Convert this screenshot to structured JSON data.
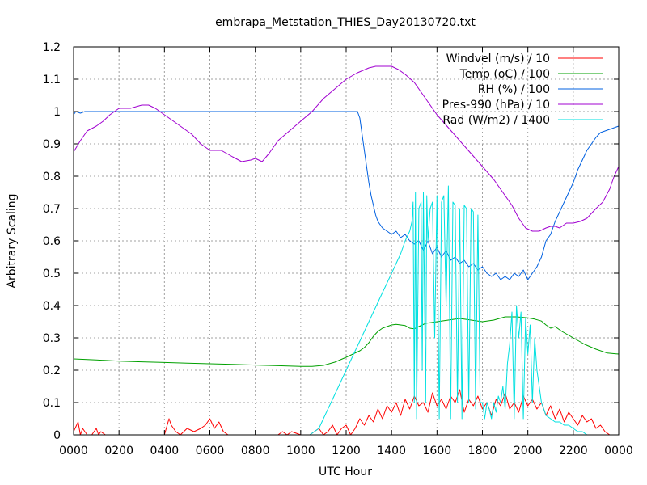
{
  "chart_data": {
    "type": "line",
    "title": "embrapa_Metstation_THIES_Day20130720.txt",
    "xlabel": "UTC Hour",
    "ylabel": "Arbitrary Scaling",
    "xlim": [
      0,
      24
    ],
    "ylim": [
      0,
      1.2
    ],
    "x_ticks": [
      {
        "value": 0,
        "label": "0000"
      },
      {
        "value": 2,
        "label": "0200"
      },
      {
        "value": 4,
        "label": "0400"
      },
      {
        "value": 6,
        "label": "0600"
      },
      {
        "value": 8,
        "label": "0800"
      },
      {
        "value": 10,
        "label": "1000"
      },
      {
        "value": 12,
        "label": "1200"
      },
      {
        "value": 14,
        "label": "1400"
      },
      {
        "value": 16,
        "label": "1600"
      },
      {
        "value": 18,
        "label": "1800"
      },
      {
        "value": 20,
        "label": "2000"
      },
      {
        "value": 22,
        "label": "2200"
      },
      {
        "value": 24,
        "label": "0000"
      }
    ],
    "y_ticks": [
      {
        "value": 0,
        "label": "0"
      },
      {
        "value": 0.1,
        "label": "0.1"
      },
      {
        "value": 0.2,
        "label": "0.2"
      },
      {
        "value": 0.3,
        "label": "0.3"
      },
      {
        "value": 0.4,
        "label": "0.4"
      },
      {
        "value": 0.5,
        "label": "0.5"
      },
      {
        "value": 0.6,
        "label": "0.6"
      },
      {
        "value": 0.7,
        "label": "0.7"
      },
      {
        "value": 0.8,
        "label": "0.8"
      },
      {
        "value": 0.9,
        "label": "0.9"
      },
      {
        "value": 1.0,
        "label": "1"
      },
      {
        "value": 1.1,
        "label": "1.1"
      },
      {
        "value": 1.2,
        "label": "1.2"
      }
    ],
    "grid": true,
    "legend_position": "top-right",
    "series": [
      {
        "name": "Windvel (m/s) / 10",
        "color": "#ff0000",
        "x": [
          0,
          0.2,
          0.3,
          0.4,
          0.6,
          0.8,
          1.0,
          1.1,
          1.2,
          1.4,
          2.0,
          3.0,
          4.0,
          4.2,
          4.3,
          4.5,
          4.7,
          5.0,
          5.3,
          5.6,
          5.8,
          6.0,
          6.2,
          6.4,
          6.6,
          6.8,
          7.0,
          8.0,
          8.8,
          9.0,
          9.2,
          9.4,
          9.6,
          10.0,
          10.4,
          10.6,
          10.8,
          11.0,
          11.2,
          11.4,
          11.6,
          11.8,
          12.0,
          12.2,
          12.4,
          12.6,
          12.8,
          13.0,
          13.2,
          13.4,
          13.6,
          13.8,
          14.0,
          14.2,
          14.4,
          14.6,
          14.8,
          15.0,
          15.2,
          15.4,
          15.6,
          15.8,
          16.0,
          16.2,
          16.4,
          16.6,
          16.8,
          17.0,
          17.2,
          17.4,
          17.6,
          17.8,
          18.0,
          18.2,
          18.4,
          18.6,
          18.8,
          19.0,
          19.2,
          19.4,
          19.6,
          19.8,
          20.0,
          20.2,
          20.4,
          20.6,
          20.8,
          21.0,
          21.2,
          21.4,
          21.6,
          21.8,
          22.0,
          22.2,
          22.4,
          22.6,
          22.8,
          23.0,
          23.2,
          23.4,
          23.6,
          23.8,
          24.0
        ],
        "values": [
          0.01,
          0.04,
          0.0,
          0.02,
          0.0,
          0.0,
          0.02,
          0.0,
          0.01,
          0.0,
          0.0,
          0.0,
          0.0,
          0.05,
          0.03,
          0.01,
          0.0,
          0.02,
          0.01,
          0.02,
          0.03,
          0.05,
          0.02,
          0.04,
          0.01,
          0.0,
          0.0,
          0.0,
          0.0,
          0.0,
          0.01,
          0.0,
          0.01,
          0.0,
          0.0,
          0.01,
          0.02,
          0.0,
          0.01,
          0.03,
          0.0,
          0.02,
          0.03,
          0.0,
          0.02,
          0.05,
          0.03,
          0.06,
          0.04,
          0.08,
          0.05,
          0.09,
          0.07,
          0.1,
          0.06,
          0.11,
          0.08,
          0.12,
          0.09,
          0.1,
          0.07,
          0.13,
          0.09,
          0.11,
          0.08,
          0.12,
          0.1,
          0.14,
          0.07,
          0.11,
          0.09,
          0.12,
          0.08,
          0.1,
          0.06,
          0.11,
          0.09,
          0.13,
          0.08,
          0.1,
          0.07,
          0.12,
          0.09,
          0.11,
          0.08,
          0.1,
          0.06,
          0.09,
          0.05,
          0.08,
          0.04,
          0.07,
          0.05,
          0.03,
          0.06,
          0.04,
          0.05,
          0.02,
          0.03,
          0.01,
          0.0,
          0.0,
          0.0
        ]
      },
      {
        "name": "Temp (oC) / 100",
        "color": "#00a000",
        "x": [
          0,
          1,
          2,
          3,
          4,
          5,
          6,
          7,
          8,
          9,
          10,
          10.5,
          11,
          11.5,
          12,
          12.3,
          12.6,
          12.8,
          13.0,
          13.2,
          13.4,
          13.6,
          13.8,
          14.0,
          14.2,
          14.4,
          14.6,
          14.8,
          15.0,
          15.2,
          15.5,
          16.0,
          16.5,
          17.0,
          17.5,
          18.0,
          18.5,
          19.0,
          19.5,
          20.0,
          20.3,
          20.6,
          20.8,
          21.0,
          21.2,
          21.5,
          22.0,
          22.5,
          23.0,
          23.5,
          24.0
        ],
        "values": [
          0.235,
          0.232,
          0.228,
          0.226,
          0.224,
          0.222,
          0.22,
          0.218,
          0.216,
          0.214,
          0.212,
          0.212,
          0.215,
          0.225,
          0.24,
          0.25,
          0.26,
          0.27,
          0.285,
          0.305,
          0.32,
          0.33,
          0.335,
          0.34,
          0.342,
          0.34,
          0.338,
          0.33,
          0.328,
          0.335,
          0.345,
          0.35,
          0.355,
          0.36,
          0.355,
          0.35,
          0.355,
          0.365,
          0.365,
          0.362,
          0.358,
          0.352,
          0.34,
          0.33,
          0.335,
          0.32,
          0.3,
          0.28,
          0.265,
          0.253,
          0.25
        ]
      },
      {
        "name": "RH (%) / 100",
        "color": "#0060e0",
        "x": [
          0,
          0.1,
          0.3,
          0.5,
          1,
          2,
          4,
          6,
          8,
          10,
          12,
          12.3,
          12.5,
          12.6,
          12.7,
          12.8,
          12.9,
          13.0,
          13.1,
          13.2,
          13.3,
          13.4,
          13.5,
          13.6,
          13.8,
          14.0,
          14.2,
          14.4,
          14.6,
          14.8,
          15.0,
          15.2,
          15.4,
          15.6,
          15.8,
          16.0,
          16.2,
          16.4,
          16.6,
          16.8,
          17.0,
          17.2,
          17.4,
          17.6,
          17.8,
          18.0,
          18.2,
          18.4,
          18.6,
          18.8,
          19.0,
          19.2,
          19.4,
          19.6,
          19.8,
          20.0,
          20.2,
          20.4,
          20.6,
          20.8,
          21.0,
          21.2,
          21.4,
          21.6,
          21.8,
          22.0,
          22.2,
          22.4,
          22.6,
          22.8,
          23.0,
          23.2,
          23.4,
          23.6,
          23.8,
          24.0
        ],
        "values": [
          0.99,
          1.0,
          0.995,
          1.0,
          1.0,
          1.0,
          1.0,
          1.0,
          1.0,
          1.0,
          1.0,
          1.0,
          1.0,
          0.98,
          0.93,
          0.88,
          0.83,
          0.78,
          0.74,
          0.71,
          0.68,
          0.66,
          0.65,
          0.64,
          0.63,
          0.62,
          0.63,
          0.61,
          0.62,
          0.6,
          0.59,
          0.6,
          0.57,
          0.6,
          0.56,
          0.58,
          0.55,
          0.57,
          0.54,
          0.55,
          0.53,
          0.54,
          0.52,
          0.53,
          0.51,
          0.52,
          0.5,
          0.49,
          0.5,
          0.48,
          0.49,
          0.48,
          0.5,
          0.49,
          0.51,
          0.48,
          0.5,
          0.52,
          0.55,
          0.6,
          0.62,
          0.66,
          0.69,
          0.72,
          0.75,
          0.78,
          0.82,
          0.85,
          0.88,
          0.9,
          0.92,
          0.935,
          0.94,
          0.945,
          0.95,
          0.955
        ]
      },
      {
        "name": "Pres-990 (hPa) / 10",
        "color": "#a000d0",
        "x": [
          0,
          0.3,
          0.6,
          1.0,
          1.3,
          1.6,
          2.0,
          2.5,
          3.0,
          3.3,
          3.6,
          4.0,
          4.4,
          4.8,
          5.2,
          5.6,
          6.0,
          6.5,
          7.0,
          7.4,
          7.8,
          8.0,
          8.3,
          8.6,
          9.0,
          9.5,
          10.0,
          10.5,
          11.0,
          11.5,
          12.0,
          12.5,
          13.0,
          13.3,
          13.6,
          14.0,
          14.3,
          14.6,
          15.0,
          15.3,
          15.6,
          16.0,
          16.5,
          17.0,
          17.5,
          18.0,
          18.5,
          19.0,
          19.3,
          19.6,
          19.9,
          20.2,
          20.5,
          20.8,
          21.0,
          21.2,
          21.4,
          21.7,
          22.0,
          22.3,
          22.6,
          23.0,
          23.3,
          23.6,
          23.8,
          24.0
        ],
        "values": [
          0.875,
          0.91,
          0.94,
          0.955,
          0.97,
          0.99,
          1.01,
          1.01,
          1.02,
          1.02,
          1.01,
          0.99,
          0.97,
          0.95,
          0.93,
          0.9,
          0.88,
          0.88,
          0.86,
          0.845,
          0.85,
          0.855,
          0.845,
          0.87,
          0.91,
          0.94,
          0.97,
          1.0,
          1.04,
          1.07,
          1.1,
          1.12,
          1.135,
          1.14,
          1.14,
          1.14,
          1.13,
          1.115,
          1.09,
          1.06,
          1.03,
          0.99,
          0.95,
          0.91,
          0.87,
          0.83,
          0.79,
          0.74,
          0.71,
          0.67,
          0.64,
          0.63,
          0.63,
          0.64,
          0.645,
          0.645,
          0.64,
          0.655,
          0.655,
          0.66,
          0.67,
          0.7,
          0.72,
          0.76,
          0.8,
          0.83
        ]
      },
      {
        "name": "Rad (W/m2) / 1400",
        "color": "#00e0e0",
        "x": [
          0,
          5,
          10,
          10.4,
          10.8,
          11.0,
          11.2,
          11.4,
          11.6,
          11.8,
          12.0,
          12.2,
          12.4,
          12.6,
          12.8,
          13.0,
          13.2,
          13.4,
          13.6,
          13.8,
          14.0,
          14.2,
          14.4,
          14.6,
          14.8,
          14.9,
          14.95,
          15.0,
          15.05,
          15.1,
          15.2,
          15.3,
          15.35,
          15.4,
          15.5,
          15.55,
          15.6,
          15.7,
          15.8,
          15.9,
          16.0,
          16.1,
          16.2,
          16.3,
          16.4,
          16.5,
          16.6,
          16.7,
          16.8,
          16.9,
          17.0,
          17.1,
          17.2,
          17.3,
          17.4,
          17.5,
          17.6,
          17.7,
          17.8,
          17.9,
          18.0,
          18.1,
          18.2,
          18.3,
          18.4,
          18.5,
          18.6,
          18.7,
          18.8,
          18.9,
          19.0,
          19.1,
          19.2,
          19.3,
          19.4,
          19.5,
          19.6,
          19.7,
          19.8,
          19.9,
          20.0,
          20.1,
          20.2,
          20.3,
          20.4,
          20.6,
          20.8,
          21.0,
          21.2,
          21.4,
          21.6,
          21.8,
          22.0,
          22.2,
          22.4,
          22.6,
          22.8,
          23.0,
          23.5,
          24.0
        ],
        "values": [
          0,
          0,
          0,
          0,
          0.02,
          0.05,
          0.08,
          0.11,
          0.14,
          0.17,
          0.2,
          0.23,
          0.26,
          0.29,
          0.32,
          0.35,
          0.38,
          0.41,
          0.44,
          0.47,
          0.5,
          0.53,
          0.56,
          0.6,
          0.63,
          0.66,
          0.72,
          0.1,
          0.75,
          0.05,
          0.7,
          0.72,
          0.2,
          0.75,
          0.1,
          0.74,
          0.6,
          0.7,
          0.72,
          0.3,
          0.74,
          0.05,
          0.72,
          0.74,
          0.4,
          0.77,
          0.05,
          0.72,
          0.71,
          0.1,
          0.7,
          0.05,
          0.71,
          0.7,
          0.1,
          0.7,
          0.69,
          0.08,
          0.68,
          0.1,
          0.1,
          0.05,
          0.1,
          0.08,
          0.05,
          0.1,
          0.07,
          0.12,
          0.1,
          0.15,
          0.08,
          0.22,
          0.28,
          0.38,
          0.05,
          0.4,
          0.3,
          0.38,
          0.05,
          0.36,
          0.25,
          0.34,
          0.1,
          0.3,
          0.2,
          0.1,
          0.06,
          0.05,
          0.04,
          0.04,
          0.03,
          0.03,
          0.02,
          0.01,
          0.01,
          0.0,
          0.0,
          0.0,
          0.0,
          0.0
        ]
      }
    ]
  }
}
